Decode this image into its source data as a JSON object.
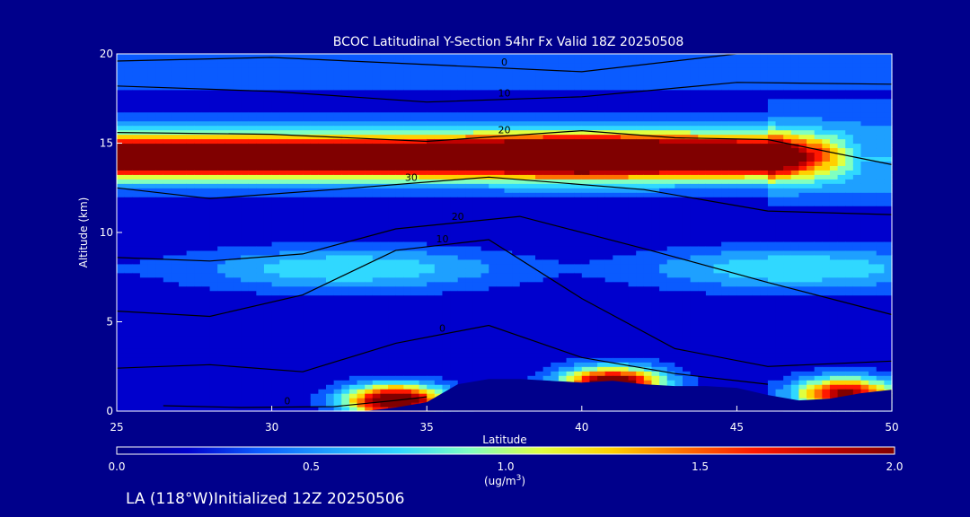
{
  "footer_text": "LA (118°W)Initialized 12Z 20250506",
  "colors": {
    "background": "#00008b",
    "terrain": "#00008b",
    "colormap": [
      "#000080",
      "#0000cd",
      "#0a5bff",
      "#1ea0ff",
      "#30d8ff",
      "#80ffc0",
      "#e0ff40",
      "#ffd000",
      "#ff7000",
      "#ff1800",
      "#c00000",
      "#800000"
    ]
  },
  "chart_data": {
    "type": "heatmap",
    "title": "BCOC Latitudinal Y-Section 54hr  Fx Valid 18Z 20250508",
    "xlabel": "Latitude",
    "ylabel": "Altitude (km)",
    "xlim": [
      25,
      50
    ],
    "ylim": [
      0,
      20
    ],
    "x_ticks": [
      "25",
      "30",
      "35",
      "40",
      "45",
      "50"
    ],
    "y_ticks": [
      "0",
      "5",
      "10",
      "15",
      "20"
    ],
    "colorbar": {
      "label": "(ug/m",
      "label_sup": "3",
      "label_end": ")",
      "range": [
        0.0,
        2.0
      ],
      "ticks": [
        "0.0",
        "0.5",
        "1.0",
        "1.5",
        "2.0"
      ]
    },
    "features": [
      {
        "name": "upper-plume",
        "lat_start": 25,
        "lat_end": 46,
        "alt_center": 14.3,
        "alt_halfwidth": 1.4,
        "peak_value": 2.0
      },
      {
        "name": "mid-layer",
        "lat_start": 25,
        "lat_end": 50,
        "alt_center": 8.0,
        "alt_halfwidth": 1.2,
        "peak_value": 0.6
      },
      {
        "name": "surface-plume-34N",
        "lat": 34.0,
        "alt": 0.6,
        "peak_value": 2.0
      },
      {
        "name": "surface-plume-41N",
        "lat": 41.0,
        "alt": 1.6,
        "peak_value": 1.9
      },
      {
        "name": "surface-plume-48N",
        "lat": 48.5,
        "alt": 1.0,
        "peak_value": 1.7
      }
    ],
    "terrain_profile": {
      "lat": [
        33.0,
        34.0,
        35.0,
        36.0,
        37.0,
        38.0,
        39.0,
        40.0,
        41.0,
        42.0,
        43.0,
        44.0,
        45.0,
        46.0,
        47.0,
        48.0,
        49.0,
        50.0
      ],
      "alt": [
        0.0,
        0.2,
        0.5,
        1.5,
        1.8,
        1.8,
        1.7,
        1.6,
        1.7,
        1.5,
        1.4,
        1.4,
        1.3,
        0.9,
        0.6,
        0.7,
        1.0,
        1.2
      ]
    },
    "contours": [
      {
        "label": "0",
        "lat": [
          25,
          30,
          35,
          40,
          45,
          50
        ],
        "alt": [
          19.6,
          19.8,
          19.4,
          19.0,
          20.0,
          20.0
        ]
      },
      {
        "label": "10",
        "lat": [
          25,
          30,
          35,
          40,
          45,
          50
        ],
        "alt": [
          18.2,
          17.9,
          17.3,
          17.6,
          18.4,
          18.3
        ]
      },
      {
        "label": "20",
        "lat": [
          25,
          30,
          35,
          40,
          43,
          46,
          50
        ],
        "alt": [
          15.6,
          15.5,
          15.1,
          15.7,
          15.3,
          15.2,
          13.8
        ]
      },
      {
        "label": "30",
        "lat": [
          25,
          28,
          32,
          37,
          42,
          46,
          50
        ],
        "alt": [
          12.5,
          11.9,
          12.4,
          13.1,
          12.4,
          11.2,
          11.0
        ]
      },
      {
        "label": "20",
        "lat": [
          25,
          28,
          31,
          34,
          38,
          42,
          46,
          50
        ],
        "alt": [
          8.6,
          8.4,
          8.8,
          10.2,
          10.9,
          9.1,
          7.2,
          5.4
        ]
      },
      {
        "label": "10",
        "lat": [
          25,
          28,
          31,
          34,
          37,
          40,
          43,
          46,
          50
        ],
        "alt": [
          5.6,
          5.3,
          6.5,
          9.0,
          9.6,
          6.3,
          3.5,
          2.5,
          2.8
        ]
      },
      {
        "label": "0",
        "lat": [
          25,
          28,
          31,
          34,
          37,
          40,
          43,
          46
        ],
        "alt": [
          2.4,
          2.6,
          2.2,
          3.8,
          4.8,
          3.0,
          2.1,
          1.5
        ]
      },
      {
        "label": "0",
        "lat": [
          26.5,
          29,
          32,
          34,
          35
        ],
        "alt": [
          0.3,
          0.2,
          0.25,
          0.6,
          0.8
        ]
      }
    ]
  }
}
